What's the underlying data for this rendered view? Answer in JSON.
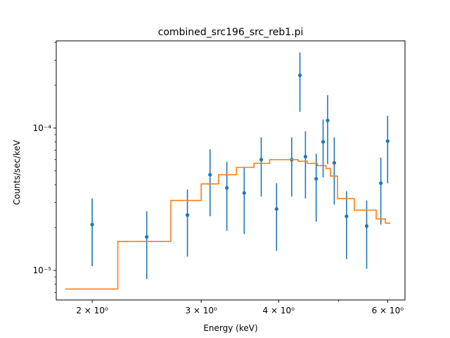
{
  "chart_data": {
    "type": "scatter",
    "title": "combined_src196_src_reb1.pi",
    "xlabel": "Energy (keV)",
    "ylabel": "Counts/sec/keV",
    "xscale": "log",
    "yscale": "log",
    "xlim": [
      1.75,
      6.4
    ],
    "ylim": [
      6.2e-06,
      0.00041
    ],
    "grid": false,
    "x_ticks": [
      {
        "value": 2,
        "label": "2 × 10⁰"
      },
      {
        "value": 3,
        "label": "3 × 10⁰"
      },
      {
        "value": 4,
        "label": "4 × 10⁰"
      },
      {
        "value": 6,
        "label": "6 × 10⁰"
      }
    ],
    "x_minor_ticks": [
      5
    ],
    "y_ticks": [
      {
        "value": 1e-05,
        "label": "10⁻⁵"
      },
      {
        "value": 0.0001,
        "label": "10⁻⁴"
      }
    ],
    "y_minor_ticks": [
      7e-06,
      8e-06,
      9e-06,
      2e-05,
      3e-05,
      4e-05,
      5e-05,
      6e-05,
      7e-05,
      8e-05,
      9e-05,
      0.0002,
      0.0003,
      0.0004
    ],
    "series": [
      {
        "kind": "errorbar",
        "color": "#1f77b4",
        "points": [
          {
            "x": 2.0,
            "y": 2.1e-05,
            "ylo": 1.07e-05,
            "yhi": 3.2e-05
          },
          {
            "x": 2.45,
            "y": 1.72e-05,
            "ylo": 8.7e-06,
            "yhi": 2.6e-05
          },
          {
            "x": 2.85,
            "y": 2.45e-05,
            "ylo": 1.25e-05,
            "yhi": 3.7e-05
          },
          {
            "x": 3.1,
            "y": 4.7e-05,
            "ylo": 2.4e-05,
            "yhi": 7.1e-05
          },
          {
            "x": 3.3,
            "y": 3.8e-05,
            "ylo": 1.9e-05,
            "yhi": 5.8e-05
          },
          {
            "x": 3.52,
            "y": 3.5e-05,
            "ylo": 1.8e-05,
            "yhi": 5.3e-05
          },
          {
            "x": 3.75,
            "y": 6e-05,
            "ylo": 3.3e-05,
            "yhi": 8.6e-05
          },
          {
            "x": 3.97,
            "y": 2.7e-05,
            "ylo": 1.37e-05,
            "yhi": 4.1e-05
          },
          {
            "x": 4.2,
            "y": 6e-05,
            "ylo": 3.3e-05,
            "yhi": 8.6e-05
          },
          {
            "x": 4.33,
            "y": 0.000235,
            "ylo": 0.00013,
            "yhi": 0.00034
          },
          {
            "x": 4.42,
            "y": 6.3e-05,
            "ylo": 3.2e-05,
            "yhi": 9.5e-05
          },
          {
            "x": 4.6,
            "y": 4.4e-05,
            "ylo": 2.2e-05,
            "yhi": 6.6e-05
          },
          {
            "x": 4.72,
            "y": 8e-05,
            "ylo": 4.5e-05,
            "yhi": 0.000115
          },
          {
            "x": 4.8,
            "y": 0.000113,
            "ylo": 5.6e-05,
            "yhi": 0.00017
          },
          {
            "x": 4.92,
            "y": 5.7e-05,
            "ylo": 2.9e-05,
            "yhi": 8.6e-05
          },
          {
            "x": 5.15,
            "y": 2.4e-05,
            "ylo": 1.2e-05,
            "yhi": 3.6e-05
          },
          {
            "x": 5.55,
            "y": 2.05e-05,
            "ylo": 1.03e-05,
            "yhi": 3.1e-05
          },
          {
            "x": 5.85,
            "y": 4.1e-05,
            "ylo": 2.1e-05,
            "yhi": 6.2e-05
          },
          {
            "x": 6.0,
            "y": 8.1e-05,
            "ylo": 4.1e-05,
            "yhi": 0.000122
          }
        ]
      },
      {
        "kind": "step",
        "color": "#ff7f0e",
        "points": [
          [
            1.81,
            7.4e-06
          ],
          [
            2.2,
            7.4e-06
          ],
          [
            2.2,
            1.6e-05
          ],
          [
            2.68,
            1.6e-05
          ],
          [
            2.68,
            3.1e-05
          ],
          [
            3.0,
            3.1e-05
          ],
          [
            3.0,
            4.05e-05
          ],
          [
            3.2,
            4.05e-05
          ],
          [
            3.2,
            4.7e-05
          ],
          [
            3.42,
            4.7e-05
          ],
          [
            3.42,
            5.3e-05
          ],
          [
            3.65,
            5.3e-05
          ],
          [
            3.65,
            5.65e-05
          ],
          [
            3.87,
            5.65e-05
          ],
          [
            3.87,
            6e-05
          ],
          [
            4.3,
            6e-05
          ],
          [
            4.3,
            5.85e-05
          ],
          [
            4.45,
            5.85e-05
          ],
          [
            4.45,
            5.65e-05
          ],
          [
            4.62,
            5.65e-05
          ],
          [
            4.62,
            5.45e-05
          ],
          [
            4.77,
            5.45e-05
          ],
          [
            4.77,
            5.2e-05
          ],
          [
            4.85,
            5.2e-05
          ],
          [
            4.85,
            4.6e-05
          ],
          [
            4.98,
            4.6e-05
          ],
          [
            4.98,
            3.2e-05
          ],
          [
            5.3,
            3.2e-05
          ],
          [
            5.3,
            2.65e-05
          ],
          [
            5.75,
            2.65e-05
          ],
          [
            5.75,
            2.3e-05
          ],
          [
            5.95,
            2.3e-05
          ],
          [
            5.95,
            2.15e-05
          ],
          [
            6.06,
            2.15e-05
          ]
        ]
      }
    ]
  }
}
